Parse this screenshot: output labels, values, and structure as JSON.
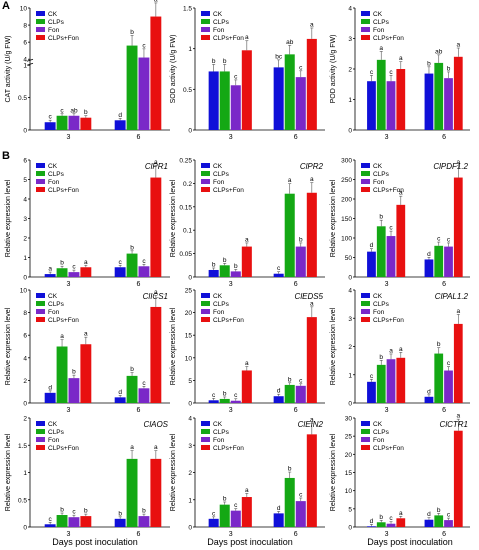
{
  "panel_labels": [
    "A",
    "B"
  ],
  "legend_entries": [
    "CK",
    "CLPs",
    "Fon",
    "CLPs+Fon"
  ],
  "colors": [
    "#1010d8",
    "#14a814",
    "#7a28c8",
    "#e81010"
  ],
  "x_caption": "Days post inoculation",
  "chart_data": [
    {
      "type": "bar",
      "ylabel": "CAT activity (U/g FW)",
      "title": "",
      "categories": [
        "3",
        "6"
      ],
      "ylim": [
        0,
        10
      ],
      "axis_break": [
        1,
        4
      ],
      "yticks": [
        0,
        0.5,
        1,
        4,
        6,
        8,
        10
      ],
      "legend_position": "top-left",
      "series": [
        {
          "name": "CK",
          "values": [
            0.12,
            0.15
          ],
          "labels": [
            "c",
            "d"
          ]
        },
        {
          "name": "CLPs",
          "values": [
            0.22,
            5.6
          ],
          "labels": [
            "c",
            "b"
          ]
        },
        {
          "name": "Fon",
          "values": [
            0.22,
            4.2
          ],
          "labels": [
            "ab",
            "c"
          ]
        },
        {
          "name": "CLPs+Fon",
          "values": [
            0.19,
            9.0
          ],
          "labels": [
            "b",
            "a"
          ]
        }
      ]
    },
    {
      "type": "bar",
      "ylabel": "SOD activity (U/g FW)",
      "title": "",
      "categories": [
        "3",
        "6"
      ],
      "ylim": [
        0,
        1.5
      ],
      "yticks": [
        0,
        0.5,
        1,
        1.5
      ],
      "legend_position": "top-left",
      "series": [
        {
          "name": "CK",
          "values": [
            0.72,
            0.77
          ],
          "labels": [
            "b",
            "bc"
          ]
        },
        {
          "name": "CLPs",
          "values": [
            0.72,
            0.93
          ],
          "labels": [
            "b",
            "ab"
          ]
        },
        {
          "name": "Fon",
          "values": [
            0.55,
            0.65
          ],
          "labels": [
            "c",
            "c"
          ]
        },
        {
          "name": "CLPs+Fon",
          "values": [
            0.98,
            1.12
          ],
          "labels": [
            "a",
            "a"
          ]
        }
      ]
    },
    {
      "type": "bar",
      "ylabel": "POD activity (U/g FW)",
      "title": "",
      "categories": [
        "3",
        "6"
      ],
      "ylim": [
        0,
        4
      ],
      "yticks": [
        0,
        1,
        2,
        3,
        4
      ],
      "legend_position": "top-left",
      "series": [
        {
          "name": "CK",
          "values": [
            1.6,
            1.85
          ],
          "labels": [
            "c",
            "b"
          ]
        },
        {
          "name": "CLPs",
          "values": [
            2.3,
            2.2
          ],
          "labels": [
            "a",
            "ab"
          ]
        },
        {
          "name": "Fon",
          "values": [
            1.6,
            1.7
          ],
          "labels": [
            "c",
            "b"
          ]
        },
        {
          "name": "CLPs+Fon",
          "values": [
            2.0,
            2.4
          ],
          "labels": [
            "a",
            "a"
          ]
        }
      ]
    },
    {
      "type": "bar",
      "ylabel": "Relative expression level",
      "title": "ClPR1",
      "categories": [
        "3",
        "6"
      ],
      "ylim": [
        0,
        6
      ],
      "yticks": [
        0,
        1,
        2,
        3,
        4,
        5,
        6
      ],
      "legend_position": "top-left",
      "series": [
        {
          "name": "CK",
          "values": [
            0.15,
            0.5
          ],
          "labels": [
            "a",
            "c"
          ]
        },
        {
          "name": "CLPs",
          "values": [
            0.45,
            1.2
          ],
          "labels": [
            "b",
            "b"
          ]
        },
        {
          "name": "Fon",
          "values": [
            0.25,
            0.55
          ],
          "labels": [
            "c",
            "c"
          ]
        },
        {
          "name": "CLPs+Fon",
          "values": [
            0.5,
            5.1
          ],
          "labels": [
            "a",
            "a"
          ]
        }
      ]
    },
    {
      "type": "bar",
      "ylabel": "Relative expression level",
      "title": "ClPR2",
      "categories": [
        "3",
        "6"
      ],
      "ylim": [
        0,
        0.25
      ],
      "yticks": [
        0,
        0.05,
        0.1,
        0.15,
        0.2,
        0.25
      ],
      "legend_position": "top-left",
      "series": [
        {
          "name": "CK",
          "values": [
            0.015,
            0.007
          ],
          "labels": [
            "b",
            "c"
          ]
        },
        {
          "name": "CLPs",
          "values": [
            0.025,
            0.178
          ],
          "labels": [
            "b",
            "a"
          ]
        },
        {
          "name": "Fon",
          "values": [
            0.012,
            0.065
          ],
          "labels": [
            "b",
            "b"
          ]
        },
        {
          "name": "CLPs+Fon",
          "values": [
            0.065,
            0.18
          ],
          "labels": [
            "a",
            "a"
          ]
        }
      ]
    },
    {
      "type": "bar",
      "ylabel": "Relative expression level",
      "title": "ClPDF1.2",
      "categories": [
        "3",
        "6"
      ],
      "ylim": [
        0,
        300
      ],
      "yticks": [
        0,
        50,
        100,
        150,
        200,
        250,
        300
      ],
      "legend_position": "top-left",
      "series": [
        {
          "name": "CK",
          "values": [
            65,
            45
          ],
          "labels": [
            "d",
            "d"
          ]
        },
        {
          "name": "CLPs",
          "values": [
            130,
            80
          ],
          "labels": [
            "b",
            "c"
          ]
        },
        {
          "name": "Fon",
          "values": [
            105,
            78
          ],
          "labels": [
            "c",
            "c"
          ]
        },
        {
          "name": "CLPs+Fon",
          "values": [
            185,
            255
          ],
          "labels": [
            "a",
            "a"
          ]
        }
      ]
    },
    {
      "type": "bar",
      "ylabel": "Relative expression level",
      "title": "ClICS1",
      "categories": [
        "3",
        "6"
      ],
      "ylim": [
        0,
        10
      ],
      "yticks": [
        0,
        2,
        4,
        6,
        8,
        10
      ],
      "legend_position": "top-left",
      "series": [
        {
          "name": "CK",
          "values": [
            0.9,
            0.5
          ],
          "labels": [
            "d",
            "d"
          ]
        },
        {
          "name": "CLPs",
          "values": [
            5.0,
            2.4
          ],
          "labels": [
            "a",
            "b"
          ]
        },
        {
          "name": "Fon",
          "values": [
            2.2,
            1.3
          ],
          "labels": [
            "b",
            "c"
          ]
        },
        {
          "name": "CLPs+Fon",
          "values": [
            5.2,
            8.5
          ],
          "labels": [
            "a",
            "a"
          ]
        }
      ]
    },
    {
      "type": "bar",
      "ylabel": "Relative expression level",
      "title": "ClEDS5",
      "categories": [
        "3",
        "6"
      ],
      "ylim": [
        0,
        25
      ],
      "yticks": [
        0,
        5,
        10,
        15,
        20,
        25
      ],
      "legend_position": "top-left",
      "series": [
        {
          "name": "CK",
          "values": [
            0.6,
            1.5
          ],
          "labels": [
            "c",
            "d"
          ]
        },
        {
          "name": "CLPs",
          "values": [
            0.9,
            4.0
          ],
          "labels": [
            "b",
            "b"
          ]
        },
        {
          "name": "Fon",
          "values": [
            0.5,
            3.8
          ],
          "labels": [
            "c",
            "c"
          ]
        },
        {
          "name": "CLPs+Fon",
          "values": [
            7.2,
            19.0
          ],
          "labels": [
            "a",
            "a"
          ]
        }
      ]
    },
    {
      "type": "bar",
      "ylabel": "Relative expression level",
      "title": "ClPAL1.2",
      "categories": [
        "3",
        "6"
      ],
      "ylim": [
        0,
        4
      ],
      "yticks": [
        0,
        1,
        2,
        3,
        4
      ],
      "legend_position": "top-left",
      "series": [
        {
          "name": "CK",
          "values": [
            0.75,
            0.22
          ],
          "labels": [
            "c",
            "d"
          ]
        },
        {
          "name": "CLPs",
          "values": [
            1.35,
            1.75
          ],
          "labels": [
            "b",
            "b"
          ]
        },
        {
          "name": "Fon",
          "values": [
            1.55,
            1.15
          ],
          "labels": [
            "a",
            "c"
          ]
        },
        {
          "name": "CLPs+Fon",
          "values": [
            1.6,
            2.8
          ],
          "labels": [
            "a",
            "a"
          ]
        }
      ]
    },
    {
      "type": "bar",
      "ylabel": "Relative expression level",
      "title": "ClAOS",
      "categories": [
        "3",
        "6"
      ],
      "ylim": [
        0,
        2
      ],
      "yticks": [
        0,
        0.5,
        1,
        1.5,
        2
      ],
      "legend_position": "top-left",
      "series": [
        {
          "name": "CK",
          "values": [
            0.05,
            0.15
          ],
          "labels": [
            "c",
            "b"
          ]
        },
        {
          "name": "CLPs",
          "values": [
            0.22,
            1.25
          ],
          "labels": [
            "b",
            "a"
          ]
        },
        {
          "name": "Fon",
          "values": [
            0.18,
            0.2
          ],
          "labels": [
            "c",
            "b"
          ]
        },
        {
          "name": "CLPs+Fon",
          "values": [
            0.2,
            1.25
          ],
          "labels": [
            "b",
            "a"
          ]
        }
      ]
    },
    {
      "type": "bar",
      "ylabel": "Relative expression level",
      "title": "ClEIN2",
      "categories": [
        "3",
        "6"
      ],
      "ylim": [
        0,
        4
      ],
      "yticks": [
        0,
        1,
        2,
        3,
        4
      ],
      "legend_position": "top-left",
      "series": [
        {
          "name": "CK",
          "values": [
            0.3,
            0.5
          ],
          "labels": [
            "c",
            "d"
          ]
        },
        {
          "name": "CLPs",
          "values": [
            0.82,
            1.8
          ],
          "labels": [
            "b",
            "b"
          ]
        },
        {
          "name": "Fon",
          "values": [
            0.6,
            0.95
          ],
          "labels": [
            "c",
            "c"
          ]
        },
        {
          "name": "CLPs+Fon",
          "values": [
            1.1,
            3.4
          ],
          "labels": [
            "a",
            "a"
          ]
        }
      ]
    },
    {
      "type": "bar",
      "ylabel": "Relative expression level",
      "title": "ClCTR1",
      "categories": [
        "3",
        "6"
      ],
      "ylim": [
        0,
        30
      ],
      "yticks": [
        0,
        5,
        10,
        15,
        20,
        25,
        30
      ],
      "legend_position": "top-left",
      "series": [
        {
          "name": "CK",
          "values": [
            0.2,
            2.0
          ],
          "labels": [
            "d",
            "d"
          ]
        },
        {
          "name": "CLPs",
          "values": [
            1.3,
            3.2
          ],
          "labels": [
            "b",
            "b"
          ]
        },
        {
          "name": "Fon",
          "values": [
            0.9,
            1.9
          ],
          "labels": [
            "c",
            "c"
          ]
        },
        {
          "name": "CLPs+Fon",
          "values": [
            2.4,
            26.5
          ],
          "labels": [
            "a",
            "a"
          ]
        }
      ]
    }
  ]
}
